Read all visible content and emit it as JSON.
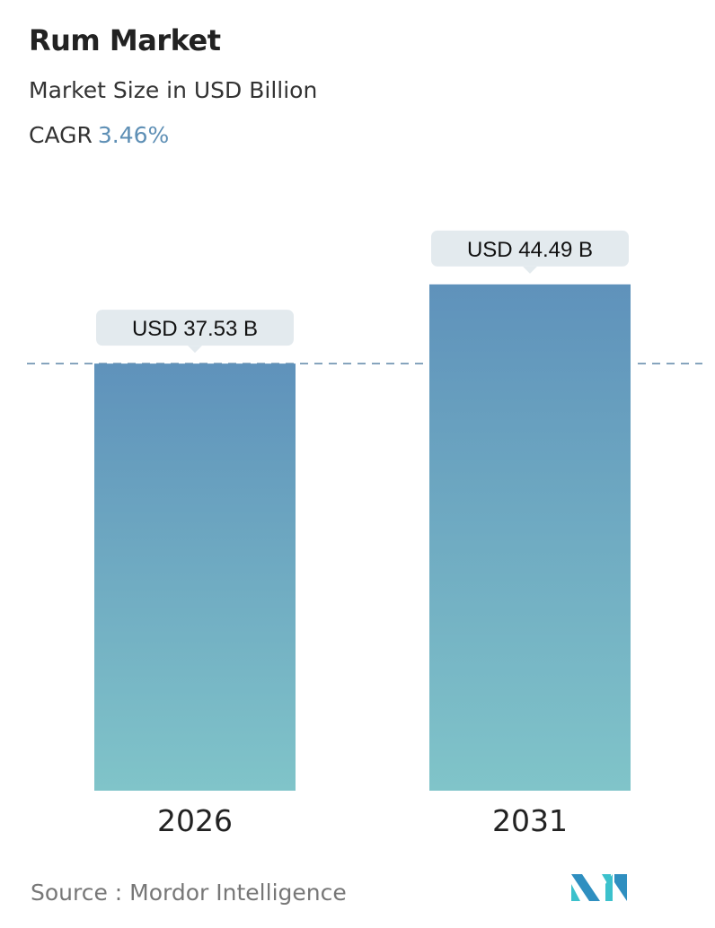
{
  "header": {
    "title": "Rum Market",
    "subtitle": "Market Size in USD Billion",
    "cagr_label": "CAGR",
    "cagr_value": "3.46%"
  },
  "chart_data": {
    "type": "bar",
    "categories": [
      "2026",
      "2031"
    ],
    "values": [
      37.53,
      44.49
    ],
    "data_labels": [
      "USD 37.53 B",
      "USD 44.49 B"
    ],
    "title": "Rum Market",
    "ylabel": "Market Size in USD Billion",
    "grid": false,
    "reference_line": 37.53,
    "colors": {
      "bar_top": "#5f92bb",
      "bar_bottom": "#80c4c9",
      "label_bg": "#e3eaee",
      "accent": "#5e8fb5"
    }
  },
  "footer": {
    "source": "Source :  Mordor Intelligence",
    "logo_text": "Mordor Intelligence"
  }
}
